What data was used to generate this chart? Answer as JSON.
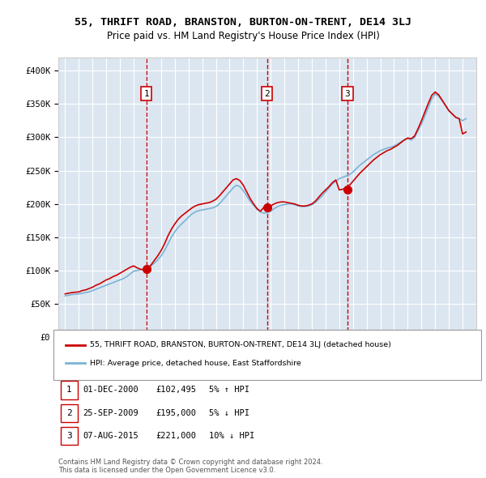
{
  "title": "55, THRIFT ROAD, BRANSTON, BURTON-ON-TRENT, DE14 3LJ",
  "subtitle": "Price paid vs. HM Land Registry's House Price Index (HPI)",
  "background_color": "#ffffff",
  "plot_bg_color": "#dce6f1",
  "grid_color": "#ffffff",
  "ylim": [
    0,
    420000
  ],
  "yticks": [
    0,
    50000,
    100000,
    150000,
    200000,
    250000,
    300000,
    350000,
    400000
  ],
  "ytick_labels": [
    "£0",
    "£50K",
    "£100K",
    "£150K",
    "£200K",
    "£250K",
    "£300K",
    "£350K",
    "£400K"
  ],
  "sale_dates": [
    2000.92,
    2009.73,
    2015.59
  ],
  "sale_prices": [
    102495,
    195000,
    221000
  ],
  "sale_markers": [
    1,
    2,
    3
  ],
  "vline_color": "#cc0000",
  "vline_style": "--",
  "sale_marker_color": "#cc0000",
  "hpi_line_color": "#7ab4d4",
  "price_line_color": "#cc0000",
  "legend_entries": [
    "55, THRIFT ROAD, BRANSTON, BURTON-ON-TRENT, DE14 3LJ (detached house)",
    "HPI: Average price, detached house, East Staffordshire"
  ],
  "table_entries": [
    {
      "num": 1,
      "date": "01-DEC-2000",
      "price": "£102,495",
      "pct": "5% ↑ HPI"
    },
    {
      "num": 2,
      "date": "25-SEP-2009",
      "price": "£195,000",
      "pct": "5% ↓ HPI"
    },
    {
      "num": 3,
      "date": "07-AUG-2015",
      "price": "£221,000",
      "pct": "10% ↓ HPI"
    }
  ],
  "footnote": "Contains HM Land Registry data © Crown copyright and database right 2024.\nThis data is licensed under the Open Government Licence v3.0.",
  "hpi_data_x": [
    1995.0,
    1995.25,
    1995.5,
    1995.75,
    1996.0,
    1996.25,
    1996.5,
    1996.75,
    1997.0,
    1997.25,
    1997.5,
    1997.75,
    1998.0,
    1998.25,
    1998.5,
    1998.75,
    1999.0,
    1999.25,
    1999.5,
    1999.75,
    2000.0,
    2000.25,
    2000.5,
    2000.75,
    2001.0,
    2001.25,
    2001.5,
    2001.75,
    2002.0,
    2002.25,
    2002.5,
    2002.75,
    2003.0,
    2003.25,
    2003.5,
    2003.75,
    2004.0,
    2004.25,
    2004.5,
    2004.75,
    2005.0,
    2005.25,
    2005.5,
    2005.75,
    2006.0,
    2006.25,
    2006.5,
    2006.75,
    2007.0,
    2007.25,
    2007.5,
    2007.75,
    2008.0,
    2008.25,
    2008.5,
    2008.75,
    2009.0,
    2009.25,
    2009.5,
    2009.75,
    2010.0,
    2010.25,
    2010.5,
    2010.75,
    2011.0,
    2011.25,
    2011.5,
    2011.75,
    2012.0,
    2012.25,
    2012.5,
    2012.75,
    2013.0,
    2013.25,
    2013.5,
    2013.75,
    2014.0,
    2014.25,
    2014.5,
    2014.75,
    2015.0,
    2015.25,
    2015.5,
    2015.75,
    2016.0,
    2016.25,
    2016.5,
    2016.75,
    2017.0,
    2017.25,
    2017.5,
    2017.75,
    2018.0,
    2018.25,
    2018.5,
    2018.75,
    2019.0,
    2019.25,
    2019.5,
    2019.75,
    2020.0,
    2020.25,
    2020.5,
    2020.75,
    2021.0,
    2021.25,
    2021.5,
    2021.75,
    2022.0,
    2022.25,
    2022.5,
    2022.75,
    2023.0,
    2023.25,
    2023.5,
    2023.75,
    2024.0,
    2024.25
  ],
  "hpi_data_y": [
    62000,
    63000,
    64000,
    64500,
    65000,
    66000,
    67000,
    68000,
    70000,
    72000,
    74000,
    76000,
    78000,
    80000,
    82000,
    84000,
    86000,
    88000,
    91000,
    95000,
    99000,
    100000,
    101000,
    102000,
    104000,
    107000,
    111000,
    116000,
    122000,
    130000,
    140000,
    150000,
    158000,
    165000,
    170000,
    175000,
    180000,
    185000,
    188000,
    190000,
    191000,
    192000,
    193000,
    194000,
    196000,
    200000,
    206000,
    212000,
    218000,
    224000,
    228000,
    226000,
    220000,
    212000,
    204000,
    198000,
    192000,
    188000,
    186000,
    187000,
    189000,
    193000,
    196000,
    198000,
    199000,
    200000,
    200000,
    199000,
    197000,
    196000,
    196000,
    197000,
    199000,
    202000,
    207000,
    212000,
    218000,
    224000,
    230000,
    234000,
    238000,
    240000,
    242000,
    244000,
    248000,
    253000,
    258000,
    262000,
    266000,
    270000,
    274000,
    277000,
    280000,
    282000,
    284000,
    285000,
    287000,
    290000,
    293000,
    296000,
    298000,
    296000,
    300000,
    310000,
    320000,
    332000,
    345000,
    358000,
    365000,
    362000,
    355000,
    348000,
    340000,
    335000,
    330000,
    328000,
    325000,
    328000
  ],
  "price_line_x": [
    1995.0,
    1995.25,
    1995.5,
    1995.75,
    1996.0,
    1996.25,
    1996.5,
    1996.75,
    1997.0,
    1997.25,
    1997.5,
    1997.75,
    1998.0,
    1998.25,
    1998.5,
    1998.75,
    1999.0,
    1999.25,
    1999.5,
    1999.75,
    2000.0,
    2000.25,
    2000.5,
    2000.75,
    2001.0,
    2001.25,
    2001.5,
    2001.75,
    2002.0,
    2002.25,
    2002.5,
    2002.75,
    2003.0,
    2003.25,
    2003.5,
    2003.75,
    2004.0,
    2004.25,
    2004.5,
    2004.75,
    2005.0,
    2005.25,
    2005.5,
    2005.75,
    2006.0,
    2006.25,
    2006.5,
    2006.75,
    2007.0,
    2007.25,
    2007.5,
    2007.75,
    2008.0,
    2008.25,
    2008.5,
    2008.75,
    2009.0,
    2009.25,
    2009.5,
    2009.75,
    2010.0,
    2010.25,
    2010.5,
    2010.75,
    2011.0,
    2011.25,
    2011.5,
    2011.75,
    2012.0,
    2012.25,
    2012.5,
    2012.75,
    2013.0,
    2013.25,
    2013.5,
    2013.75,
    2014.0,
    2014.25,
    2014.5,
    2014.75,
    2015.0,
    2015.25,
    2015.5,
    2015.75,
    2016.0,
    2016.25,
    2016.5,
    2016.75,
    2017.0,
    2017.25,
    2017.5,
    2017.75,
    2018.0,
    2018.25,
    2018.5,
    2018.75,
    2019.0,
    2019.25,
    2019.5,
    2019.75,
    2020.0,
    2020.25,
    2020.5,
    2020.75,
    2021.0,
    2021.25,
    2021.5,
    2021.75,
    2022.0,
    2022.25,
    2022.5,
    2022.75,
    2023.0,
    2023.25,
    2023.5,
    2023.75,
    2024.0,
    2024.25
  ],
  "price_line_y": [
    65000,
    66000,
    67000,
    67500,
    68000,
    70000,
    71000,
    73000,
    75000,
    78000,
    80000,
    83000,
    86000,
    88000,
    91000,
    93000,
    96000,
    99000,
    102000,
    105000,
    107000,
    104000,
    102000,
    101000,
    102495,
    108000,
    115000,
    122000,
    130000,
    140000,
    152000,
    162000,
    170000,
    177000,
    182000,
    186000,
    190000,
    194000,
    197000,
    199000,
    200000,
    201000,
    202000,
    204000,
    207000,
    212000,
    218000,
    224000,
    230000,
    236000,
    238000,
    235000,
    228000,
    218000,
    208000,
    200000,
    193000,
    189000,
    195000,
    196000,
    197000,
    200000,
    202000,
    203000,
    203000,
    202000,
    201000,
    200000,
    198000,
    197000,
    197000,
    198000,
    200000,
    204000,
    210000,
    216000,
    221000,
    226000,
    232000,
    236000,
    221000,
    222000,
    224000,
    228000,
    234000,
    240000,
    246000,
    251000,
    256000,
    261000,
    266000,
    270000,
    274000,
    277000,
    280000,
    282000,
    285000,
    288000,
    292000,
    296000,
    299000,
    298000,
    302000,
    313000,
    325000,
    338000,
    351000,
    363000,
    368000,
    364000,
    356000,
    348000,
    340000,
    335000,
    330000,
    328000,
    305000,
    308000
  ]
}
